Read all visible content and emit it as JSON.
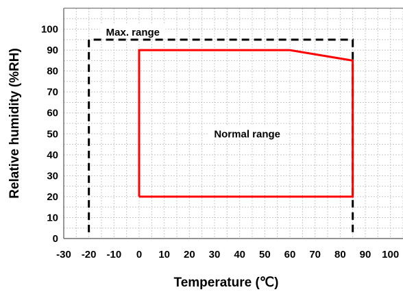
{
  "chart_data": {
    "type": "line",
    "title": "",
    "xlabel": "Temperature (℃)",
    "ylabel": "Relative humidity (%RH)",
    "xlim": [
      -30,
      105
    ],
    "ylim": [
      0,
      110
    ],
    "xticks": [
      "-30",
      "-20",
      "-10",
      "0",
      "10",
      "20",
      "30",
      "40",
      "50",
      "60",
      "70",
      "80",
      "90",
      "100"
    ],
    "yticks": [
      "0",
      "10",
      "20",
      "30",
      "40",
      "50",
      "60",
      "70",
      "80",
      "90",
      "100"
    ],
    "grid": true,
    "series": [
      {
        "name": "Max. range",
        "color": "#000000",
        "style": "dashed",
        "x": [
          -20,
          -20,
          85,
          85
        ],
        "y": [
          3,
          95,
          95,
          3
        ]
      },
      {
        "name": "Normal range",
        "color": "#ff0000",
        "style": "solid",
        "x": [
          0,
          0,
          60,
          85,
          85,
          0
        ],
        "y": [
          20,
          90,
          90,
          85,
          20,
          20
        ]
      }
    ],
    "annotations": [
      {
        "text": "Max. range",
        "x": -2.5,
        "y": 98.5
      },
      {
        "text": "Normal range",
        "x": 43,
        "y": 50
      }
    ]
  }
}
